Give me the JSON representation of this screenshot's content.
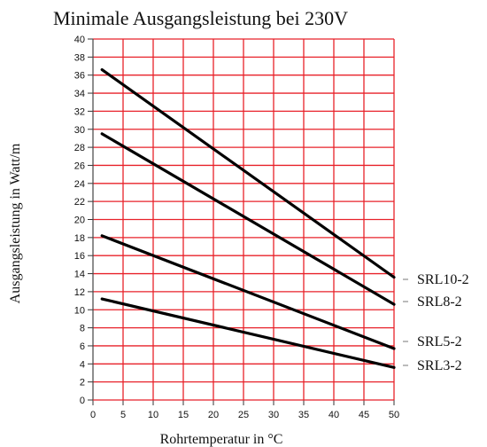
{
  "chart_data": {
    "type": "line",
    "title": "Minimale Ausgangsleistung bei 230V",
    "xlabel": "Rohrtemperatur  in °C",
    "ylabel": "Ausgangsleistung in Watt/m",
    "xlim": [
      0,
      50
    ],
    "ylim": [
      0,
      40
    ],
    "xticks": [
      0,
      5,
      10,
      15,
      20,
      25,
      30,
      35,
      40,
      45,
      50
    ],
    "yticks": [
      0,
      2,
      4,
      6,
      8,
      10,
      12,
      14,
      16,
      18,
      20,
      22,
      24,
      26,
      28,
      30,
      32,
      34,
      36,
      38,
      40
    ],
    "grid": true,
    "grid_color": "#e8222a",
    "line_color": "#000000",
    "series": [
      {
        "name": "SRL10-2",
        "x": [
          1.5,
          50
        ],
        "y": [
          36.6,
          13.6
        ]
      },
      {
        "name": "SRL8-2",
        "x": [
          1.5,
          50
        ],
        "y": [
          29.5,
          10.6
        ]
      },
      {
        "name": "SRL5-2",
        "x": [
          1.5,
          50
        ],
        "y": [
          18.2,
          5.7
        ]
      },
      {
        "name": "SRL3-2",
        "x": [
          1.5,
          50
        ],
        "y": [
          11.2,
          3.6
        ]
      }
    ]
  }
}
